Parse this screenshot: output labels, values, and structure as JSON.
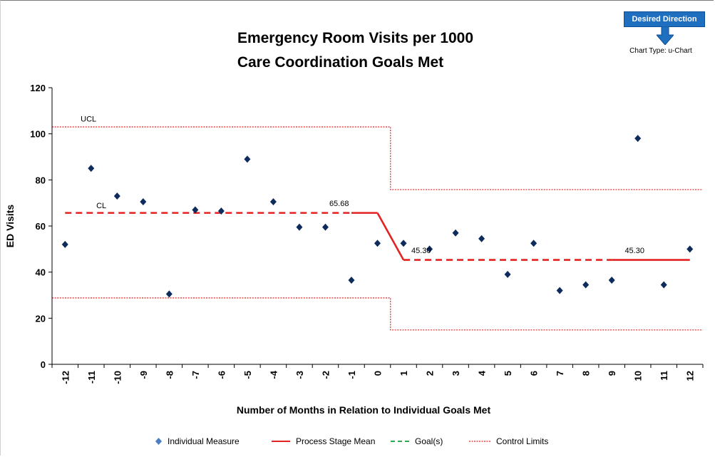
{
  "header": {
    "badge_label": "Desired Direction",
    "chart_type_label": "Chart Type: u-Chart"
  },
  "colors": {
    "point": "#0d2b5c",
    "mean": "#e32222",
    "limits": "#e32222",
    "goal": "#2fa84f",
    "badge": "#1f6fc0"
  },
  "icons": {
    "direction": "down-arrow-icon"
  },
  "chart_data": {
    "type": "scatter",
    "title": "Emergency Room Visits per 1000",
    "subtitle": "Care Coordination  Goals Met",
    "xlabel": "Number of Months in Relation to Individual Goals Met",
    "ylabel": "ED Visits",
    "ylim": [
      0,
      120
    ],
    "yticks": [
      0,
      20,
      40,
      60,
      80,
      100,
      120
    ],
    "x": [
      -12,
      -11,
      -10,
      -9,
      -8,
      -7,
      -6,
      -5,
      -4,
      -3,
      -2,
      -1,
      0,
      1,
      2,
      3,
      4,
      5,
      6,
      7,
      8,
      9,
      10,
      11,
      12
    ],
    "x_tick_labels": [
      "-12",
      "-11",
      "-10",
      "-9",
      "-8",
      "-7",
      "-6",
      "-5",
      "-4",
      "-3",
      "-2",
      "-1",
      "0",
      "1",
      "2",
      "3",
      "4",
      "5",
      "6",
      "7",
      "8",
      "9",
      "10",
      "11",
      "12"
    ],
    "series": [
      {
        "name": "Individual Measure",
        "values": [
          52,
          85,
          73,
          70.5,
          30.5,
          67,
          66.5,
          89,
          70.5,
          59.5,
          59.5,
          36.5,
          52.5,
          52.5,
          50,
          57,
          54.5,
          39,
          52.5,
          32,
          34.5,
          36.5,
          98,
          34.5,
          50
        ]
      }
    ],
    "process_stage_mean": [
      {
        "from_x": -12,
        "to_x": -1,
        "value": 65.68,
        "style": "dashed"
      },
      {
        "from_x": -1,
        "to_x": 0,
        "value": 65.68,
        "style": "solid"
      },
      {
        "from_x": 0,
        "to_x": 1,
        "value_start": 65.68,
        "value_end": 45.3,
        "style": "solid"
      },
      {
        "from_x": 1,
        "to_x": 9,
        "value": 45.3,
        "style": "dashed"
      },
      {
        "from_x": 9,
        "to_x": 12,
        "value": 45.3,
        "style": "solid"
      }
    ],
    "control_limits": {
      "stage1": {
        "from_x": -12.5,
        "to_x": 0.5,
        "ucl": 103,
        "lcl": 28.8
      },
      "stage2": {
        "from_x": 0.5,
        "to_x": 12.5,
        "ucl": 75.8,
        "lcl": 14.9
      }
    },
    "annotations": [
      {
        "text": "UCL",
        "x": -11.4,
        "y": 104
      },
      {
        "text": "CL",
        "x": -10.8,
        "y": 66.5
      },
      {
        "text": "65.68",
        "x": -1.85,
        "y": 67.5
      },
      {
        "text": "45.30",
        "x": 1.3,
        "y": 47
      },
      {
        "text": "45.30",
        "x": 9.5,
        "y": 47
      }
    ],
    "legend": [
      {
        "label": "Individual Measure",
        "marker": "diamond"
      },
      {
        "label": "Process Stage Mean",
        "marker": "solid-line"
      },
      {
        "label": "Goal(s)",
        "marker": "dashed-line"
      },
      {
        "label": "Control Limits",
        "marker": "dotted-line"
      }
    ],
    "legend_position": "bottom"
  }
}
